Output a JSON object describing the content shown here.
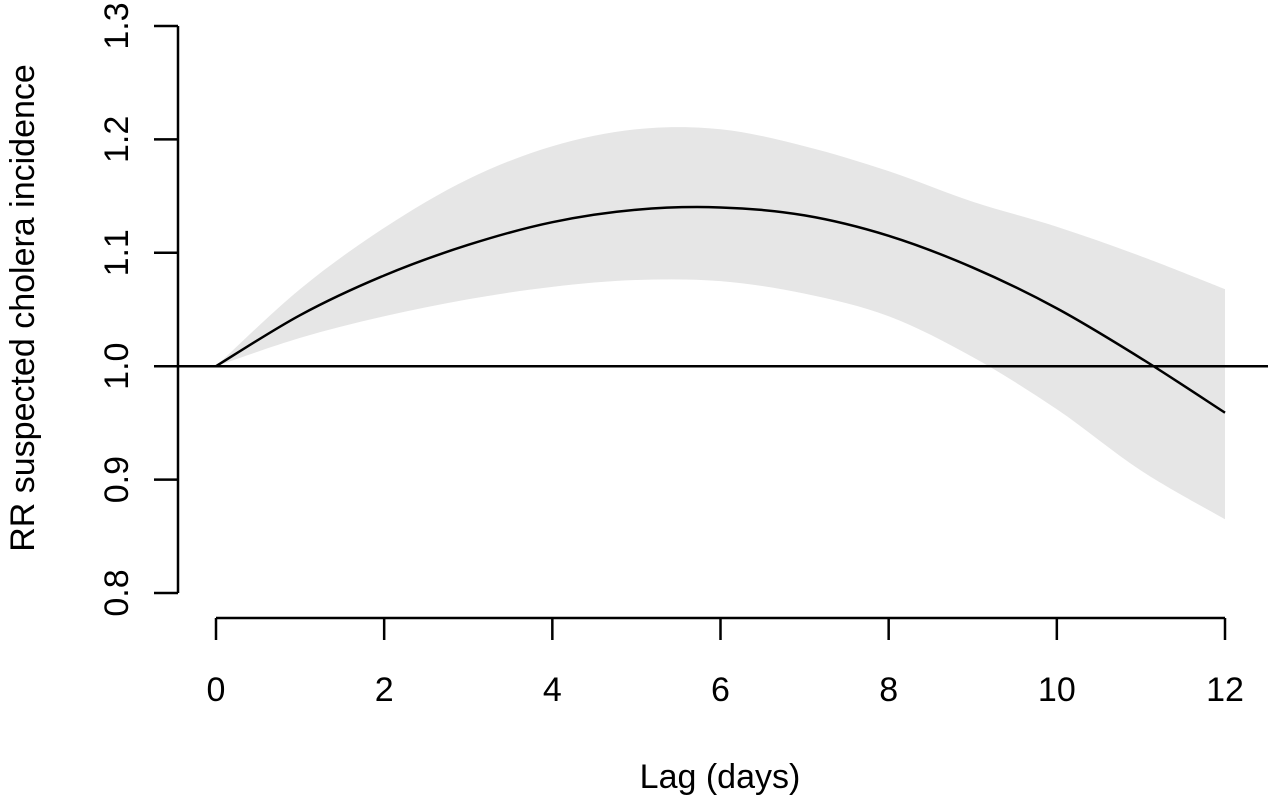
{
  "chart_data": {
    "type": "line",
    "title": "",
    "xlabel": "Lag (days)",
    "ylabel": "RR suspected cholera incidence",
    "xlim": [
      0,
      12
    ],
    "ylim": [
      0.8,
      1.3
    ],
    "x_ticks": [
      0,
      2,
      4,
      6,
      8,
      10,
      12
    ],
    "x_tick_labels": [
      "0",
      "2",
      "4",
      "6",
      "8",
      "10",
      "12"
    ],
    "y_ticks": [
      0.8,
      0.9,
      1.0,
      1.1,
      1.2,
      1.3
    ],
    "y_tick_labels": [
      "0.8",
      "0.9",
      "1.0",
      "1.1",
      "1.2",
      "1.3"
    ],
    "grid": false,
    "reference_line": {
      "y": 1.0
    },
    "series": [
      {
        "x": [
          0,
          1,
          2,
          3,
          4,
          5,
          6,
          7,
          8,
          9,
          10,
          11,
          12
        ],
        "values": [
          1.0,
          1.045,
          1.08,
          1.107,
          1.127,
          1.138,
          1.14,
          1.133,
          1.115,
          1.087,
          1.051,
          1.007,
          0.959
        ],
        "lower": [
          1.0,
          1.025,
          1.044,
          1.059,
          1.07,
          1.076,
          1.075,
          1.064,
          1.044,
          1.008,
          0.962,
          0.908,
          0.865
        ],
        "upper": [
          1.0,
          1.068,
          1.122,
          1.165,
          1.194,
          1.209,
          1.209,
          1.194,
          1.172,
          1.145,
          1.123,
          1.097,
          1.068
        ]
      }
    ],
    "colors": {
      "band": "#e6e6e6",
      "line": "#000000"
    }
  }
}
